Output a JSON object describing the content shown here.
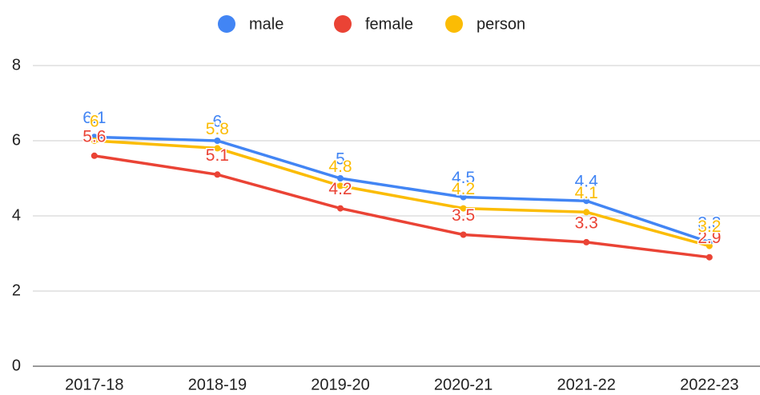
{
  "chart_data": {
    "type": "line",
    "categories": [
      "2017-18",
      "2018-19",
      "2019-20",
      "2020-21",
      "2021-22",
      "2022-23"
    ],
    "series": [
      {
        "name": "male",
        "color": "#4285f4",
        "values": [
          6.1,
          6,
          5,
          4.5,
          4.4,
          3.3
        ]
      },
      {
        "name": "female",
        "color": "#ea4335",
        "values": [
          5.6,
          5.1,
          4.2,
          3.5,
          3.3,
          2.9
        ]
      },
      {
        "name": "person",
        "color": "#fbbc04",
        "values": [
          6,
          5.8,
          4.8,
          4.2,
          4.1,
          3.2
        ]
      }
    ],
    "ylim": [
      0,
      8
    ],
    "yticks": [
      0,
      2,
      4,
      6,
      8
    ],
    "grid": true,
    "legend": "top",
    "data_labels": true
  }
}
